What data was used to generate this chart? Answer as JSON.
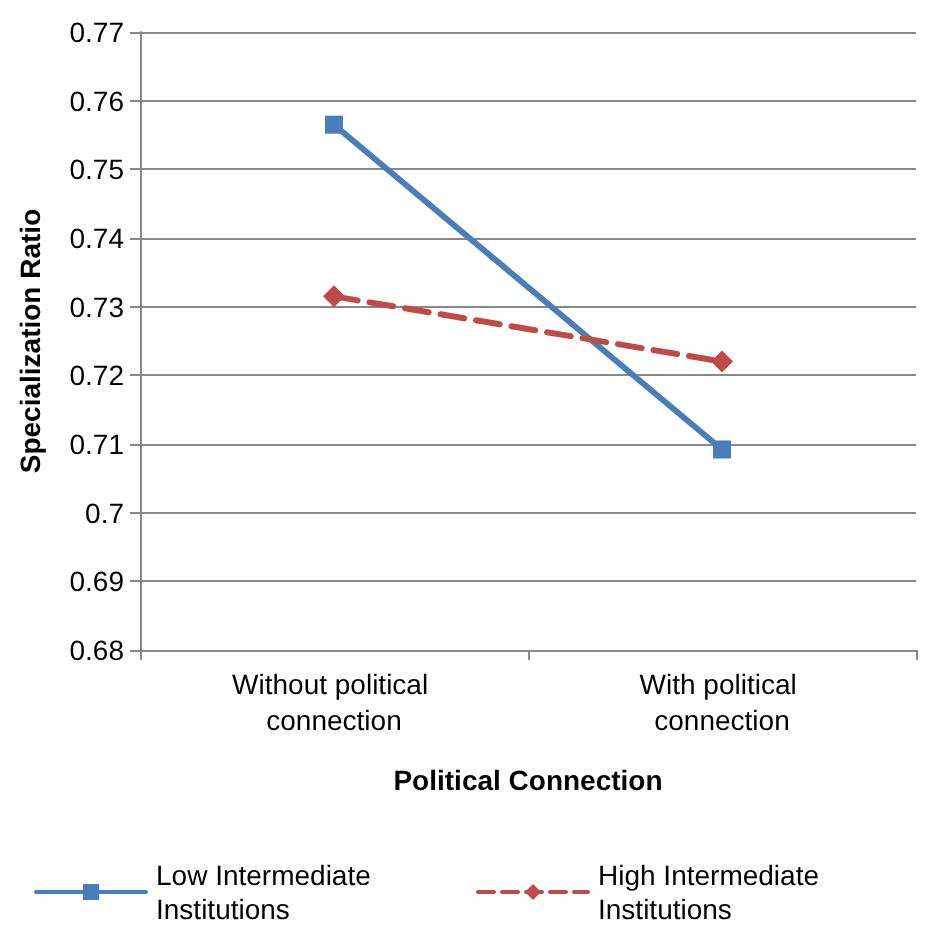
{
  "chart_data": {
    "type": "line",
    "xlabel": "Political Connection",
    "ylabel": "Specialization Ratio",
    "categories": [
      "Without political connection",
      "With political connection"
    ],
    "series": [
      {
        "name": "Low Intermediate Institutions",
        "color": "#4a7ebb",
        "values": [
          0.7565,
          0.7092
        ],
        "marker": "square",
        "line_style": "solid"
      },
      {
        "name": "High Intermediate Institutions",
        "color": "#be4b48",
        "values": [
          0.7315,
          0.722
        ],
        "marker": "diamond",
        "line_style": "dashed"
      }
    ],
    "ylim": [
      0.68,
      0.77
    ],
    "yticks": [
      0.68,
      0.69,
      0.7,
      0.71,
      0.72,
      0.73,
      0.74,
      0.75,
      0.76,
      0.77
    ],
    "grid": "y",
    "legend": "bottom"
  }
}
